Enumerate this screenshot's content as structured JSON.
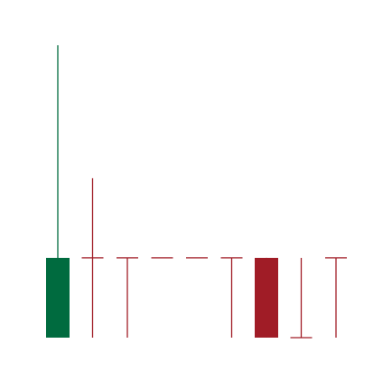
{
  "chart_data": {
    "type": "candlestick",
    "title": "",
    "xlabel": "",
    "ylabel": "",
    "grid": false,
    "legend": "none",
    "ylim": [
      0,
      100
    ],
    "colors": {
      "up": "#006b3f",
      "down": "#a01c26"
    },
    "candles": [
      {
        "index": 0,
        "open": 6.0,
        "high": 94.0,
        "low": 6.0,
        "close": 30.0
      },
      {
        "index": 1,
        "open": 30.0,
        "high": 54.0,
        "low": 6.0,
        "close": 30.0
      },
      {
        "index": 2,
        "open": 30.0,
        "high": 30.0,
        "low": 6.0,
        "close": 30.0
      },
      {
        "index": 3,
        "open": 30.0,
        "high": 30.0,
        "low": 30.0,
        "close": 30.0
      },
      {
        "index": 4,
        "open": 30.0,
        "high": 30.0,
        "low": 30.0,
        "close": 30.0
      },
      {
        "index": 5,
        "open": 30.0,
        "high": 30.0,
        "low": 6.0,
        "close": 30.0
      },
      {
        "index": 6,
        "open": 30.0,
        "high": 30.0,
        "low": 6.0,
        "close": 6.0
      },
      {
        "index": 7,
        "open": 6.0,
        "high": 30.0,
        "low": 6.0,
        "close": 6.0
      },
      {
        "index": 8,
        "open": 30.0,
        "high": 30.0,
        "low": 6.0,
        "close": 30.0
      }
    ]
  }
}
